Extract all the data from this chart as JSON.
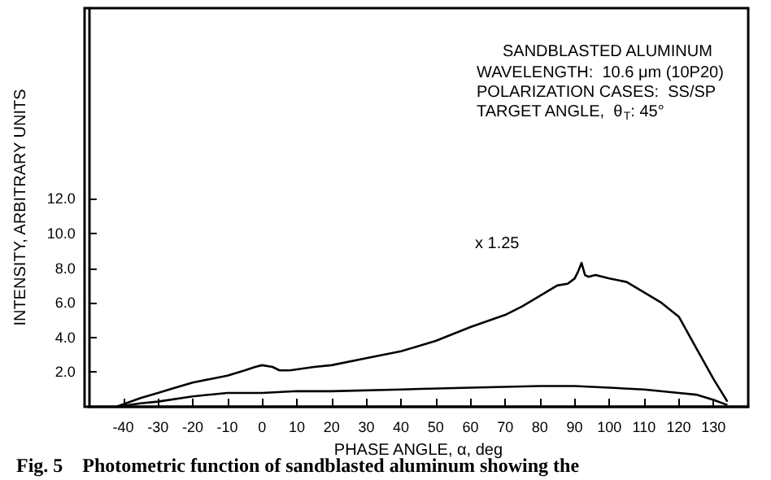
{
  "chart_data": {
    "type": "line",
    "title": "SANDBLASTED ALUMINUM",
    "xlabel": "PHASE ANGLE, α, deg",
    "ylabel": "INTENSITY, ARBITRARY UNITS",
    "annotations": [
      "WAVELENGTH:  10.6 μm (10P20)",
      "POLARIZATION CASES:  SS/SP",
      "TARGET ANGLE,  θ$_{T}$: 45°",
      "x 1.25",
      "Fig. 5    Photometric function of sandblasted aluminum showing the"
    ],
    "series": [
      {
        "color": "#000000",
        "x": [
          -42,
          -35,
          -30,
          -25,
          -20,
          -15,
          -10,
          -5,
          -2,
          0,
          3,
          5,
          8,
          15,
          20,
          30,
          40,
          50,
          60,
          70,
          75,
          80,
          85,
          88,
          90,
          91,
          92,
          93,
          94,
          96,
          100,
          105,
          110,
          115,
          120,
          125,
          130,
          134
        ],
        "values": [
          0,
          0.5,
          0.8,
          1.1,
          1.4,
          1.6,
          1.8,
          2.1,
          2.3,
          2.4,
          2.3,
          2.1,
          2.1,
          2.3,
          2.4,
          2.8,
          3.2,
          3.8,
          4.6,
          5.3,
          5.8,
          6.4,
          7.0,
          7.1,
          7.4,
          7.8,
          8.3,
          7.6,
          7.5,
          7.6,
          7.4,
          7.2,
          6.6,
          6.0,
          5.2,
          3.4,
          1.6,
          0.3
        ]
      },
      {
        "color": "#000000",
        "x": [
          -42,
          -35,
          -30,
          -20,
          -10,
          0,
          10,
          20,
          40,
          60,
          80,
          90,
          100,
          110,
          120,
          125,
          130,
          134
        ],
        "values": [
          0,
          0.2,
          0.3,
          0.6,
          0.8,
          0.8,
          0.9,
          0.9,
          1.0,
          1.1,
          1.2,
          1.2,
          1.1,
          1.0,
          0.8,
          0.7,
          0.4,
          0.1
        ]
      }
    ],
    "xlim": [
      -50,
      140
    ],
    "xticks": [
      -40,
      -30,
      -20,
      -10,
      0,
      10,
      20,
      30,
      40,
      50,
      60,
      70,
      80,
      90,
      100,
      110,
      120,
      130
    ],
    "ylim": [
      0,
      23
    ],
    "yticks": [
      {
        "value": 2,
        "label": "2.0"
      },
      {
        "value": 4,
        "label": "4.0"
      },
      {
        "value": 6,
        "label": "6.0"
      },
      {
        "value": 8,
        "label": "8.0"
      },
      {
        "value": 10,
        "label": "10.0"
      },
      {
        "value": 12,
        "label": "12.0"
      }
    ],
    "grid": false,
    "marker": "none",
    "line_style": "solid"
  }
}
